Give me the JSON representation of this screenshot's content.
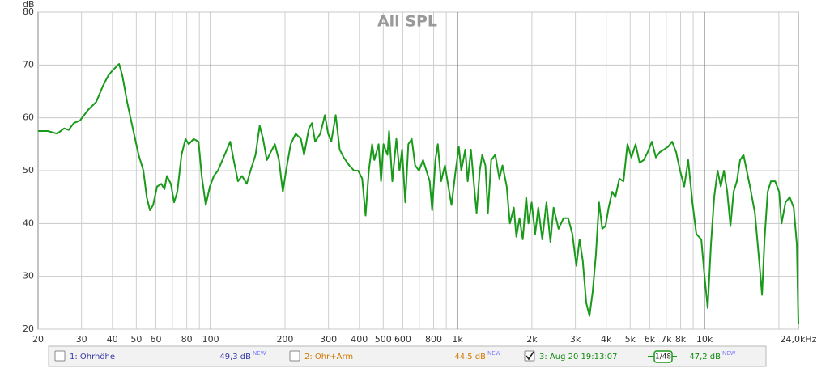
{
  "chart_data": {
    "type": "line",
    "title": "All SPL",
    "ylabel": "dB",
    "xscale": "log",
    "grid": true,
    "xlim": [
      20,
      24000
    ],
    "ylim": [
      20,
      80
    ],
    "yticks": [
      20,
      30,
      40,
      50,
      60,
      70,
      80
    ],
    "xticks": [
      20,
      30,
      40,
      50,
      60,
      80,
      100,
      200,
      300,
      400,
      500,
      600,
      800,
      {
        "value": 1000,
        "label": "1k"
      },
      {
        "value": 2000,
        "label": "2k"
      },
      {
        "value": 3000,
        "label": "3k"
      },
      {
        "value": 4000,
        "label": "4k"
      },
      {
        "value": 5000,
        "label": "5k"
      },
      {
        "value": 6000,
        "label": "6k"
      },
      {
        "value": 7000,
        "label": "7k"
      },
      {
        "value": 8000,
        "label": "8k"
      },
      {
        "value": 10000,
        "label": "10k"
      },
      {
        "value": 24000,
        "label": "24,0kHz"
      }
    ],
    "xminor": [
      70,
      90,
      700,
      900,
      9000,
      20000
    ],
    "x": [
      20,
      21.9,
      23.9,
      25.5,
      26.6,
      27.9,
      29.6,
      31.9,
      34.4,
      36.6,
      38.5,
      40.1,
      42.6,
      43.9,
      45.9,
      48.4,
      51.1,
      53.4,
      55.1,
      56.8,
      58.5,
      60.7,
      63.1,
      65,
      66.5,
      69,
      71.1,
      73.3,
      76.2,
      79.1,
      81.5,
      85.3,
      89.3,
      92,
      95.5,
      99.3,
      103,
      107,
      114,
      120,
      124,
      129,
      134,
      140,
      145,
      152,
      158,
      163,
      169,
      175,
      182,
      189,
      196,
      202,
      211,
      221,
      232,
      239,
      250,
      257,
      265,
      278,
      290,
      299,
      308,
      321,
      333,
      346,
      364,
      381,
      396,
      411,
      424,
      437,
      451,
      460,
      479,
      490,
      501,
      520,
      528,
      544,
      565,
      582,
      596,
      614,
      632,
      652,
      673,
      698,
      725,
      748,
      771,
      789,
      813,
      832,
      857,
      889,
      925,
      945,
      982,
      1012,
      1035,
      1074,
      1099,
      1133,
      1167,
      1194,
      1230,
      1259,
      1297,
      1327,
      1368,
      1422,
      1476,
      1521,
      1581,
      1629,
      1690,
      1730,
      1782,
      1837,
      1897,
      1936,
      1995,
      2061,
      2123,
      2203,
      2291,
      2377,
      2449,
      2564,
      2685,
      2805,
      2917,
      3027,
      3119,
      3214,
      3319,
      3420,
      3524,
      3631,
      3741,
      3855,
      3972,
      4093,
      4227,
      4355,
      4519,
      4699,
      4875,
      5058,
      5260,
      5458,
      5675,
      5888,
      6124,
      6353,
      6592,
      6855,
      7112,
      7396,
      7674,
      7962,
      8279,
      8590,
      8933,
      9268,
      9705,
      10000,
      10304,
      10617,
      10940,
      11298,
      11641,
      11995,
      12359,
      12735,
      13122,
      13521,
      13932,
      14388,
      14825,
      15276,
      15996,
      16711,
      17100,
      17498,
      18030,
      18578,
      19320,
      20045,
      20512,
      21281,
      22131,
      22963,
      23659,
      24000
    ],
    "series": [
      {
        "name": "3: Aug 20 19:13:07",
        "color": "#1a9a1a",
        "values": [
          57.5,
          57.5,
          57,
          58,
          57.7,
          59,
          59.5,
          61.5,
          63,
          66,
          68,
          69,
          70.2,
          68,
          63,
          58,
          53,
          50,
          45,
          42.5,
          43.5,
          47,
          47.5,
          46.5,
          49,
          47.5,
          44,
          46,
          53,
          56,
          55,
          56,
          55.5,
          49,
          43.5,
          47,
          49,
          50,
          53,
          55.5,
          52,
          48,
          49,
          47.5,
          50,
          53,
          58.5,
          56,
          52,
          53.5,
          55,
          52,
          46,
          50,
          55,
          57,
          56,
          53,
          58,
          59,
          55.5,
          57,
          60.5,
          57,
          55.5,
          60.5,
          54,
          52.5,
          51,
          50,
          50,
          48.5,
          41.5,
          50,
          55,
          52,
          55,
          48,
          55,
          53,
          57.5,
          48,
          56,
          50,
          54,
          44,
          55,
          56,
          51,
          50,
          52,
          50,
          48,
          42.5,
          52,
          55,
          48,
          51,
          46,
          43.5,
          50,
          54.5,
          50,
          54,
          48,
          54,
          47,
          42,
          50,
          53,
          51,
          42,
          52,
          53,
          48.5,
          51,
          47,
          40,
          43,
          37.5,
          41,
          37,
          45,
          40,
          44,
          38,
          43,
          37,
          44,
          36.5,
          43,
          39,
          41,
          41,
          38,
          32,
          37,
          33,
          25,
          22.5,
          27,
          34,
          44,
          39,
          39.5,
          43,
          46,
          45,
          48.5,
          48,
          55,
          52.5,
          55,
          51.5,
          52,
          53.5,
          55.5,
          52.5,
          53.5,
          54,
          54.5,
          55.5,
          53.5,
          50,
          47,
          52,
          44,
          38,
          37,
          30,
          24,
          36,
          45,
          50,
          47,
          50,
          46,
          39.5,
          46,
          48,
          52,
          53,
          50,
          47,
          42,
          32,
          26.5,
          37,
          46,
          48,
          48,
          46,
          40,
          44,
          45,
          43,
          36,
          21
        ]
      }
    ],
    "legend": [
      {
        "label": "1: Ohrhöhe",
        "value": "49,3 dB",
        "badge": "NEW",
        "checked": false,
        "color": "#3535a8"
      },
      {
        "label": "2: Ohr+Arm",
        "value": "44,5 dB",
        "badge": "NEW",
        "checked": false,
        "color": "#d07800"
      },
      {
        "label_path": true,
        "value": "47,2 dB",
        "badge": "NEW",
        "checked": true,
        "color": "#108a10",
        "smoothing": "1/48"
      }
    ]
  }
}
